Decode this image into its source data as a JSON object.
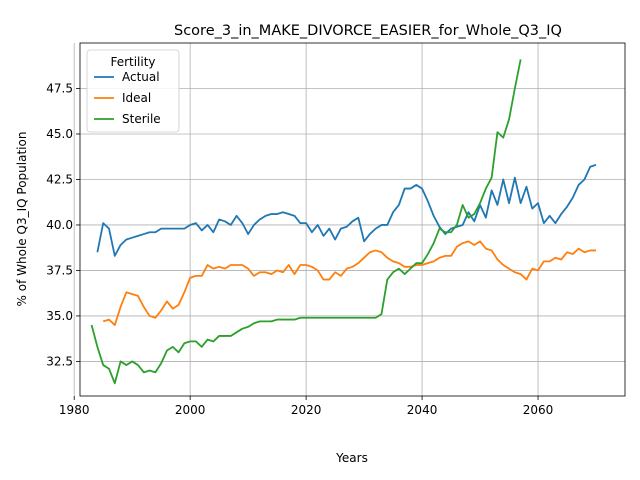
{
  "chart_data": {
    "type": "line",
    "title": "Score_3_in_MAKE_DIVORCE_EASIER_for_Whole_Q3_IQ",
    "xlabel": "Years",
    "ylabel": "% of Whole Q3_IQ Population",
    "xlim": [
      1981,
      2075
    ],
    "ylim": [
      30.6,
      50.0
    ],
    "xticks": [
      1980,
      2000,
      2020,
      2040,
      2060
    ],
    "yticks": [
      32.5,
      35.0,
      37.5,
      40.0,
      42.5,
      45.0,
      47.5
    ],
    "grid": true,
    "legend": {
      "title": "Fertility",
      "placement": "top-left"
    },
    "series": [
      {
        "name": "Actual",
        "color": "#1f77b4",
        "x": [
          1984,
          1985,
          1986,
          1987,
          1988,
          1989,
          1990,
          1991,
          1992,
          1993,
          1994,
          1995,
          1996,
          1997,
          1998,
          1999,
          2000,
          2001,
          2002,
          2003,
          2004,
          2005,
          2006,
          2007,
          2008,
          2009,
          2010,
          2011,
          2012,
          2013,
          2014,
          2015,
          2016,
          2017,
          2018,
          2019,
          2020,
          2021,
          2022,
          2023,
          2024,
          2025,
          2026,
          2027,
          2028,
          2029,
          2030,
          2031,
          2032,
          2033,
          2034,
          2035,
          2036,
          2037,
          2038,
          2039,
          2040,
          2041,
          2042,
          2043,
          2044,
          2045,
          2046,
          2047,
          2048,
          2049,
          2050,
          2051,
          2052,
          2053,
          2054,
          2055,
          2056,
          2057,
          2058,
          2059,
          2060,
          2061,
          2062,
          2063,
          2064,
          2065,
          2066,
          2067,
          2068,
          2069,
          2070
        ],
        "values": [
          38.5,
          40.1,
          39.8,
          38.3,
          38.9,
          39.2,
          39.3,
          39.4,
          39.5,
          39.6,
          39.6,
          39.8,
          39.8,
          39.8,
          39.8,
          39.8,
          40.0,
          40.1,
          39.7,
          40.0,
          39.6,
          40.3,
          40.2,
          40.0,
          40.5,
          40.1,
          39.5,
          40.0,
          40.3,
          40.5,
          40.6,
          40.6,
          40.7,
          40.6,
          40.5,
          40.1,
          40.1,
          39.6,
          40.0,
          39.4,
          39.8,
          39.2,
          39.8,
          39.9,
          40.2,
          40.4,
          39.1,
          39.5,
          39.8,
          40.0,
          40.0,
          40.7,
          41.1,
          42.0,
          42.0,
          42.2,
          42.0,
          41.3,
          40.5,
          39.9,
          39.5,
          39.8,
          39.9,
          40.0,
          40.7,
          40.2,
          41.1,
          40.4,
          41.9,
          41.1,
          42.5,
          41.2,
          42.6,
          41.2,
          42.1,
          40.9,
          41.2,
          40.1,
          40.5,
          40.1,
          40.6,
          41.0,
          41.5,
          42.2,
          42.5,
          43.2,
          43.3
        ]
      },
      {
        "name": "Ideal",
        "color": "#ff7f0e",
        "x": [
          1985,
          1986,
          1987,
          1988,
          1989,
          1990,
          1991,
          1992,
          1993,
          1994,
          1995,
          1996,
          1997,
          1998,
          1999,
          2000,
          2001,
          2002,
          2003,
          2004,
          2005,
          2006,
          2007,
          2008,
          2009,
          2010,
          2011,
          2012,
          2013,
          2014,
          2015,
          2016,
          2017,
          2018,
          2019,
          2020,
          2021,
          2022,
          2023,
          2024,
          2025,
          2026,
          2027,
          2028,
          2029,
          2030,
          2031,
          2032,
          2033,
          2034,
          2035,
          2036,
          2037,
          2038,
          2039,
          2040,
          2041,
          2042,
          2043,
          2044,
          2045,
          2046,
          2047,
          2048,
          2049,
          2050,
          2051,
          2052,
          2053,
          2054,
          2055,
          2056,
          2057,
          2058,
          2059,
          2060,
          2061,
          2062,
          2063,
          2064,
          2065,
          2066,
          2067,
          2068,
          2069,
          2070
        ],
        "values": [
          34.7,
          34.8,
          34.5,
          35.5,
          36.3,
          36.2,
          36.1,
          35.5,
          35.0,
          34.9,
          35.3,
          35.8,
          35.4,
          35.6,
          36.3,
          37.1,
          37.2,
          37.2,
          37.8,
          37.6,
          37.7,
          37.6,
          37.8,
          37.8,
          37.8,
          37.6,
          37.2,
          37.4,
          37.4,
          37.3,
          37.5,
          37.4,
          37.8,
          37.3,
          37.8,
          37.8,
          37.7,
          37.5,
          37.0,
          37.0,
          37.4,
          37.2,
          37.6,
          37.7,
          37.9,
          38.2,
          38.5,
          38.6,
          38.5,
          38.2,
          38.0,
          37.9,
          37.7,
          37.7,
          37.8,
          37.8,
          37.9,
          38.0,
          38.2,
          38.3,
          38.3,
          38.8,
          39.0,
          39.1,
          38.9,
          39.1,
          38.7,
          38.6,
          38.1,
          37.8,
          37.6,
          37.4,
          37.3,
          37.0,
          37.6,
          37.5,
          38.0,
          38.0,
          38.2,
          38.1,
          38.5,
          38.4,
          38.7,
          38.5,
          38.6,
          38.6
        ]
      },
      {
        "name": "Sterile",
        "color": "#2ca02c",
        "x": [
          1983,
          1984,
          1985,
          1986,
          1987,
          1988,
          1989,
          1990,
          1991,
          1992,
          1993,
          1994,
          1995,
          1996,
          1997,
          1998,
          1999,
          2000,
          2001,
          2002,
          2003,
          2004,
          2005,
          2006,
          2007,
          2008,
          2009,
          2010,
          2011,
          2012,
          2013,
          2014,
          2015,
          2016,
          2017,
          2018,
          2019,
          2020,
          2021,
          2022,
          2023,
          2024,
          2025,
          2026,
          2027,
          2028,
          2029,
          2030,
          2031,
          2032,
          2033,
          2034,
          2035,
          2036,
          2037,
          2038,
          2039,
          2040,
          2041,
          2042,
          2043,
          2044,
          2045,
          2046,
          2047,
          2048,
          2049,
          2050,
          2051,
          2052,
          2053,
          2054,
          2055,
          2056,
          2057
        ],
        "values": [
          34.5,
          33.3,
          32.3,
          32.1,
          31.3,
          32.5,
          32.3,
          32.5,
          32.3,
          31.9,
          32.0,
          31.9,
          32.4,
          33.1,
          33.3,
          33.0,
          33.5,
          33.6,
          33.6,
          33.3,
          33.7,
          33.6,
          33.9,
          33.9,
          33.9,
          34.1,
          34.3,
          34.4,
          34.6,
          34.7,
          34.7,
          34.7,
          34.8,
          34.8,
          34.8,
          34.8,
          34.9,
          34.9,
          34.9,
          34.9,
          34.9,
          34.9,
          34.9,
          34.9,
          34.9,
          34.9,
          34.9,
          34.9,
          34.9,
          34.9,
          35.1,
          37.0,
          37.4,
          37.6,
          37.3,
          37.6,
          37.9,
          37.9,
          38.4,
          39.0,
          39.8,
          39.6,
          39.6,
          40.0,
          41.1,
          40.4,
          40.6,
          41.2,
          42.0,
          42.6,
          45.1,
          44.8,
          45.8,
          47.5,
          49.1
        ]
      }
    ]
  }
}
